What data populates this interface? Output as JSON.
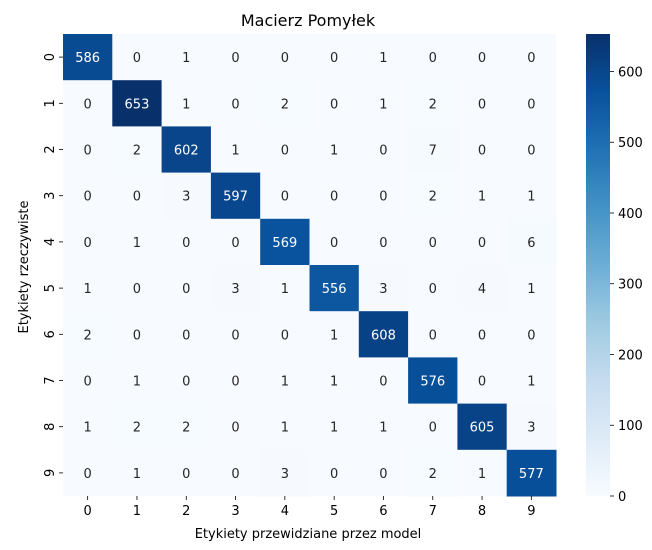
{
  "chart_data": {
    "type": "heatmap",
    "title": "Macierz Pomyłek",
    "xlabel": "Etykiety przewidziane przez model",
    "ylabel": "Etykiety rzeczywiste",
    "x_categories": [
      "0",
      "1",
      "2",
      "3",
      "4",
      "5",
      "6",
      "7",
      "8",
      "9"
    ],
    "y_categories": [
      "0",
      "1",
      "2",
      "3",
      "4",
      "5",
      "6",
      "7",
      "8",
      "9"
    ],
    "values": [
      [
        586,
        0,
        1,
        0,
        0,
        0,
        1,
        0,
        0,
        0
      ],
      [
        0,
        653,
        1,
        0,
        2,
        0,
        1,
        2,
        0,
        0
      ],
      [
        0,
        2,
        602,
        1,
        0,
        1,
        0,
        7,
        0,
        0
      ],
      [
        0,
        0,
        3,
        597,
        0,
        0,
        0,
        2,
        1,
        1
      ],
      [
        0,
        1,
        0,
        0,
        569,
        0,
        0,
        0,
        0,
        6
      ],
      [
        1,
        0,
        0,
        3,
        1,
        556,
        3,
        0,
        4,
        1
      ],
      [
        2,
        0,
        0,
        0,
        0,
        1,
        608,
        0,
        0,
        0
      ],
      [
        0,
        1,
        0,
        0,
        1,
        1,
        0,
        576,
        0,
        1
      ],
      [
        1,
        2,
        2,
        0,
        1,
        1,
        1,
        0,
        605,
        3
      ],
      [
        0,
        1,
        0,
        0,
        3,
        0,
        0,
        2,
        1,
        577
      ]
    ],
    "colormap": "Blues",
    "vmin": 0,
    "vmax": 653,
    "colorbar_ticks": [
      0,
      100,
      200,
      300,
      400,
      500,
      600
    ],
    "colors": {
      "low": "#f7fbff",
      "high": "#08306b",
      "text_dark": "#262626",
      "text_light": "#ffffff"
    }
  }
}
